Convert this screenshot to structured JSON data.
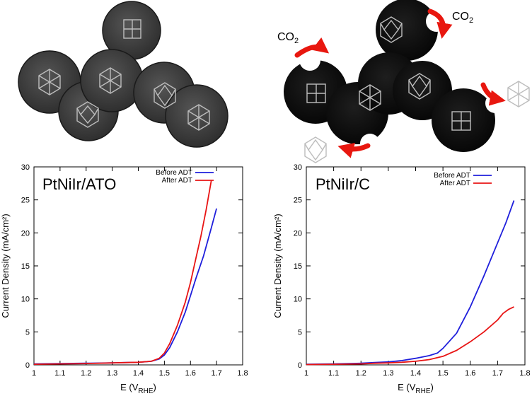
{
  "colors": {
    "before": "#1f1fdc",
    "after": "#e81414",
    "ato_particle": "#3a3a3a",
    "carbon_particle": "#111111",
    "arrow": "#e8170f",
    "crystal": "#bdbdbd"
  },
  "illustration": {
    "co2_label_main": "CO",
    "co2_label_sub": "2"
  },
  "chart_data": [
    {
      "type": "line",
      "title": "PtNiIr/ATO",
      "xlabel_main": "E (V",
      "xlabel_sub": "RHE",
      "xlabel_close": ")",
      "ylabel": "Current Density (mA/cm²)",
      "xlim": [
        1.0,
        1.8
      ],
      "ylim": [
        0,
        30
      ],
      "xticks": [
        "1",
        "1.1",
        "1.2",
        "1.3",
        "1.4",
        "1.5",
        "1.6",
        "1.7",
        "1.8"
      ],
      "yticks": [
        "0",
        "5",
        "10",
        "15",
        "20",
        "25",
        "30"
      ],
      "legend_position": "top-right",
      "series": [
        {
          "name": "Before ADT",
          "color_key": "before",
          "x": [
            1.0,
            1.1,
            1.2,
            1.3,
            1.4,
            1.45,
            1.48,
            1.5,
            1.52,
            1.55,
            1.58,
            1.6,
            1.62,
            1.65,
            1.68,
            1.7
          ],
          "y": [
            0.15,
            0.2,
            0.25,
            0.3,
            0.4,
            0.55,
            0.9,
            1.5,
            2.6,
            5.0,
            8.0,
            10.5,
            13.0,
            16.5,
            20.8,
            23.7
          ]
        },
        {
          "name": "After ADT",
          "color_key": "after",
          "x": [
            1.0,
            1.1,
            1.2,
            1.3,
            1.4,
            1.45,
            1.48,
            1.5,
            1.52,
            1.55,
            1.58,
            1.6,
            1.62,
            1.64,
            1.66,
            1.68
          ],
          "y": [
            0.1,
            0.15,
            0.2,
            0.3,
            0.4,
            0.55,
            1.0,
            1.8,
            3.2,
            6.0,
            9.5,
            12.5,
            16.0,
            19.5,
            23.5,
            28.0
          ]
        }
      ]
    },
    {
      "type": "line",
      "title": "PtNiIr/C",
      "xlabel_main": "E (V",
      "xlabel_sub": "RHE",
      "xlabel_close": ")",
      "ylabel": "Current Density (mA/cm²)",
      "xlim": [
        1.0,
        1.8
      ],
      "ylim": [
        0,
        30
      ],
      "xticks": [
        "1",
        "1.1",
        "1.2",
        "1.3",
        "1.4",
        "1.5",
        "1.6",
        "1.7",
        "1.8"
      ],
      "yticks": [
        "0",
        "5",
        "10",
        "15",
        "20",
        "25",
        "30"
      ],
      "legend_position": "top-right",
      "series": [
        {
          "name": "Before ADT",
          "color_key": "before",
          "x": [
            1.0,
            1.1,
            1.2,
            1.25,
            1.3,
            1.35,
            1.4,
            1.45,
            1.48,
            1.5,
            1.55,
            1.6,
            1.65,
            1.7,
            1.73,
            1.76
          ],
          "y": [
            0.1,
            0.15,
            0.25,
            0.35,
            0.45,
            0.65,
            1.0,
            1.4,
            1.8,
            2.5,
            4.8,
            8.8,
            13.5,
            18.5,
            21.5,
            24.9
          ]
        },
        {
          "name": "After ADT",
          "color_key": "after",
          "x": [
            1.0,
            1.1,
            1.2,
            1.25,
            1.3,
            1.35,
            1.4,
            1.45,
            1.5,
            1.55,
            1.6,
            1.65,
            1.7,
            1.72,
            1.74,
            1.76
          ],
          "y": [
            0.05,
            0.1,
            0.15,
            0.25,
            0.3,
            0.4,
            0.55,
            0.8,
            1.3,
            2.2,
            3.5,
            5.0,
            6.8,
            7.8,
            8.4,
            8.8
          ]
        }
      ]
    }
  ]
}
